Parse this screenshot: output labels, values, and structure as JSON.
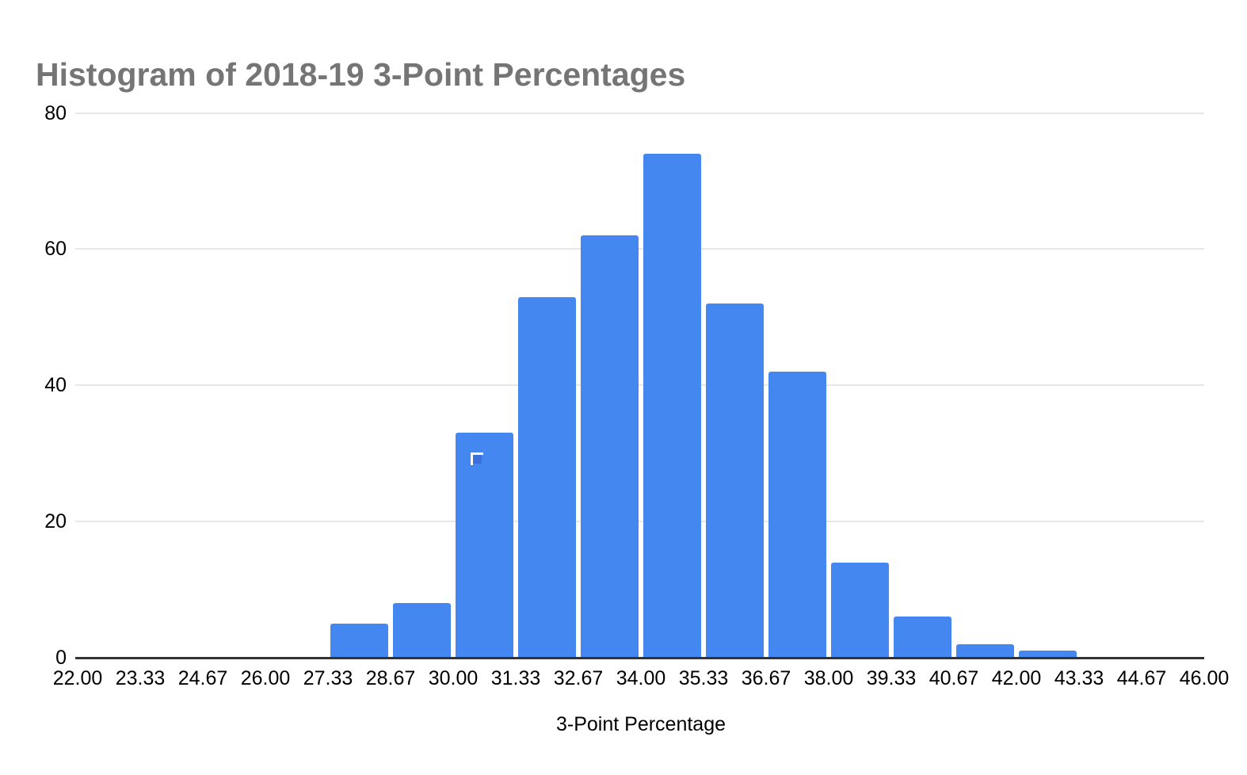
{
  "title": "Histogram of 2018-19 3-Point Percentages",
  "colors": {
    "bar": "#4587f0",
    "bar_marker_inner": "#3a70d9",
    "title_text": "#757575",
    "axis_line": "#333333",
    "gridline": "#e7e7e7",
    "tick_label": "#000000"
  },
  "chart_data": {
    "type": "bar",
    "subtype": "histogram",
    "title": "Histogram of 2018-19 3-Point Percentages",
    "xlabel": "3-Point Percentage",
    "ylabel": "",
    "grid": true,
    "legend_position": "none",
    "ylim": [
      0,
      80
    ],
    "y_ticks": [
      0,
      20,
      40,
      60,
      80
    ],
    "x_tick_labels": [
      "22.00",
      "23.33",
      "24.67",
      "26.00",
      "27.33",
      "28.67",
      "30.00",
      "31.33",
      "32.67",
      "34.00",
      "35.33",
      "36.67",
      "38.00",
      "39.33",
      "40.67",
      "42.00",
      "43.33",
      "44.67",
      "46.00"
    ],
    "bin_width": 1.3333,
    "bins": [
      {
        "from": "22.00",
        "to": "23.33",
        "count": 0
      },
      {
        "from": "23.33",
        "to": "24.67",
        "count": 0
      },
      {
        "from": "24.67",
        "to": "26.00",
        "count": 0
      },
      {
        "from": "26.00",
        "to": "27.33",
        "count": 0
      },
      {
        "from": "27.33",
        "to": "28.67",
        "count": 5
      },
      {
        "from": "28.67",
        "to": "30.00",
        "count": 8
      },
      {
        "from": "30.00",
        "to": "31.33",
        "count": 33
      },
      {
        "from": "31.33",
        "to": "32.67",
        "count": 53
      },
      {
        "from": "32.67",
        "to": "34.00",
        "count": 62
      },
      {
        "from": "34.00",
        "to": "35.33",
        "count": 74
      },
      {
        "from": "35.33",
        "to": "36.67",
        "count": 52
      },
      {
        "from": "36.67",
        "to": "38.00",
        "count": 42
      },
      {
        "from": "38.00",
        "to": "39.33",
        "count": 14
      },
      {
        "from": "39.33",
        "to": "40.67",
        "count": 6
      },
      {
        "from": "40.67",
        "to": "42.00",
        "count": 2
      },
      {
        "from": "42.00",
        "to": "43.33",
        "count": 1
      },
      {
        "from": "43.33",
        "to": "44.67",
        "count": 0
      },
      {
        "from": "44.67",
        "to": "46.00",
        "count": 0
      }
    ],
    "selection_marker": {
      "bin_from": "30.00",
      "description": "white corner bracket with darker blue square near top-left of the 30.00-31.33 bar"
    }
  }
}
